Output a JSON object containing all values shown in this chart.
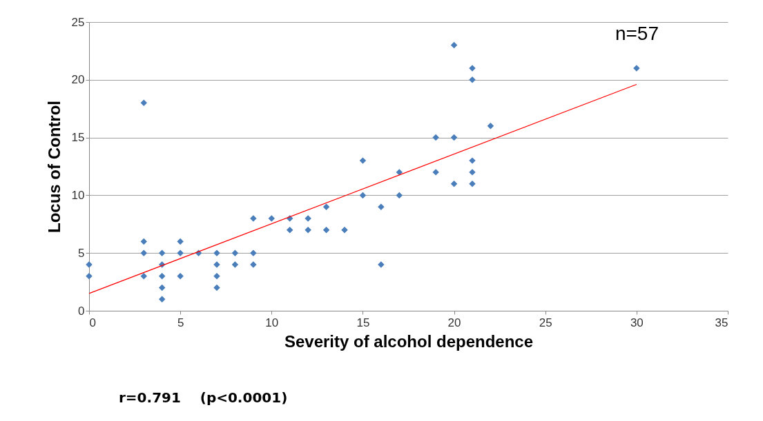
{
  "chart_data": {
    "type": "scatter",
    "xlabel": "Severity of alcohol dependence",
    "ylabel": "Locus of Control",
    "annotations": [
      "n=57",
      "r=0.791    (p<0.0001)"
    ],
    "xlim": [
      0,
      35
    ],
    "xticks": [
      0,
      5,
      10,
      15,
      20,
      25,
      30,
      35
    ],
    "ylim": [
      0,
      25
    ],
    "yticks": [
      0,
      5,
      10,
      15,
      20,
      25
    ],
    "grid": "y",
    "series": [
      {
        "type": "scatter",
        "marker": "diamond",
        "color": "#4a7ebb",
        "x": [
          0,
          0,
          3,
          3,
          3,
          3,
          4,
          4,
          4,
          4,
          4,
          5,
          5,
          5,
          6,
          7,
          7,
          7,
          7,
          8,
          8,
          9,
          9,
          9,
          10,
          11,
          11,
          12,
          12,
          13,
          13,
          14,
          15,
          15,
          16,
          16,
          17,
          17,
          19,
          19,
          20,
          20,
          20,
          21,
          21,
          21,
          21,
          21,
          22,
          30
        ],
        "values": [
          4,
          3,
          18,
          6,
          5,
          3,
          5,
          4,
          3,
          2,
          1,
          6,
          5,
          3,
          5,
          5,
          4,
          3,
          2,
          5,
          4,
          8,
          5,
          4,
          8,
          8,
          7,
          8,
          7,
          9,
          7,
          7,
          13,
          10,
          9,
          4,
          12,
          10,
          15,
          12,
          23,
          15,
          11,
          21,
          20,
          13,
          12,
          11,
          16,
          21
        ]
      },
      {
        "type": "line",
        "color": "#ff0000",
        "line_style": "solid",
        "x": [
          0,
          30
        ],
        "values": [
          1.5,
          19.6
        ]
      }
    ]
  }
}
